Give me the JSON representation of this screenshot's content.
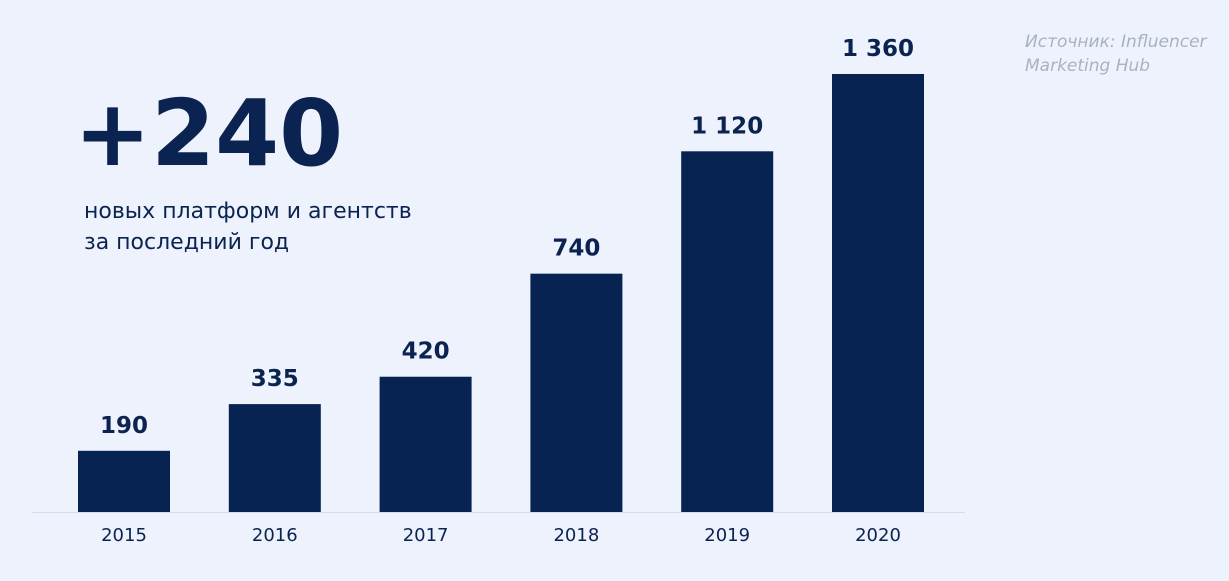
{
  "chart_data": {
    "type": "bar",
    "annotation": {
      "headline": "+240",
      "lines": [
        "новых платформ и агентств",
        "за последний год"
      ]
    },
    "source": "Источник: Influencer Marketing Hub",
    "categories": [
      "2015",
      "2016",
      "2017",
      "2018",
      "2019",
      "2020"
    ],
    "values": [
      190,
      335,
      420,
      740,
      1120,
      1360
    ],
    "value_labels": [
      "190",
      "335",
      "420",
      "740",
      "1 120",
      "1 360"
    ],
    "color": "#062352"
  }
}
